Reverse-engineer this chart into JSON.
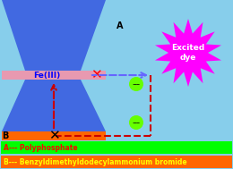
{
  "bg_color": "#87CEEB",
  "clay_color": "#4169E1",
  "fe_band_color": "#E899B0",
  "surfactant_color": "#FF6600",
  "legend_a_color": "#00FF00",
  "legend_b_color": "#FF6600",
  "excited_dye_color": "#FF00FF",
  "electron_color": "#66FF00",
  "label_a": "A--- Polyphosphate",
  "label_b": "B--- Benzyldimethyldodecylammonium bromide",
  "fe_label": "Fe(III)",
  "excited_label": "Excited\ndye",
  "point_a": "A",
  "point_b": "B",
  "cyan_panel_color": "#7FFFD4",
  "red_x_color": "#FF0000",
  "black_x_color": "#000000",
  "blue_arrow_color": "#6666FF",
  "red_arrow_color": "#CC0000"
}
